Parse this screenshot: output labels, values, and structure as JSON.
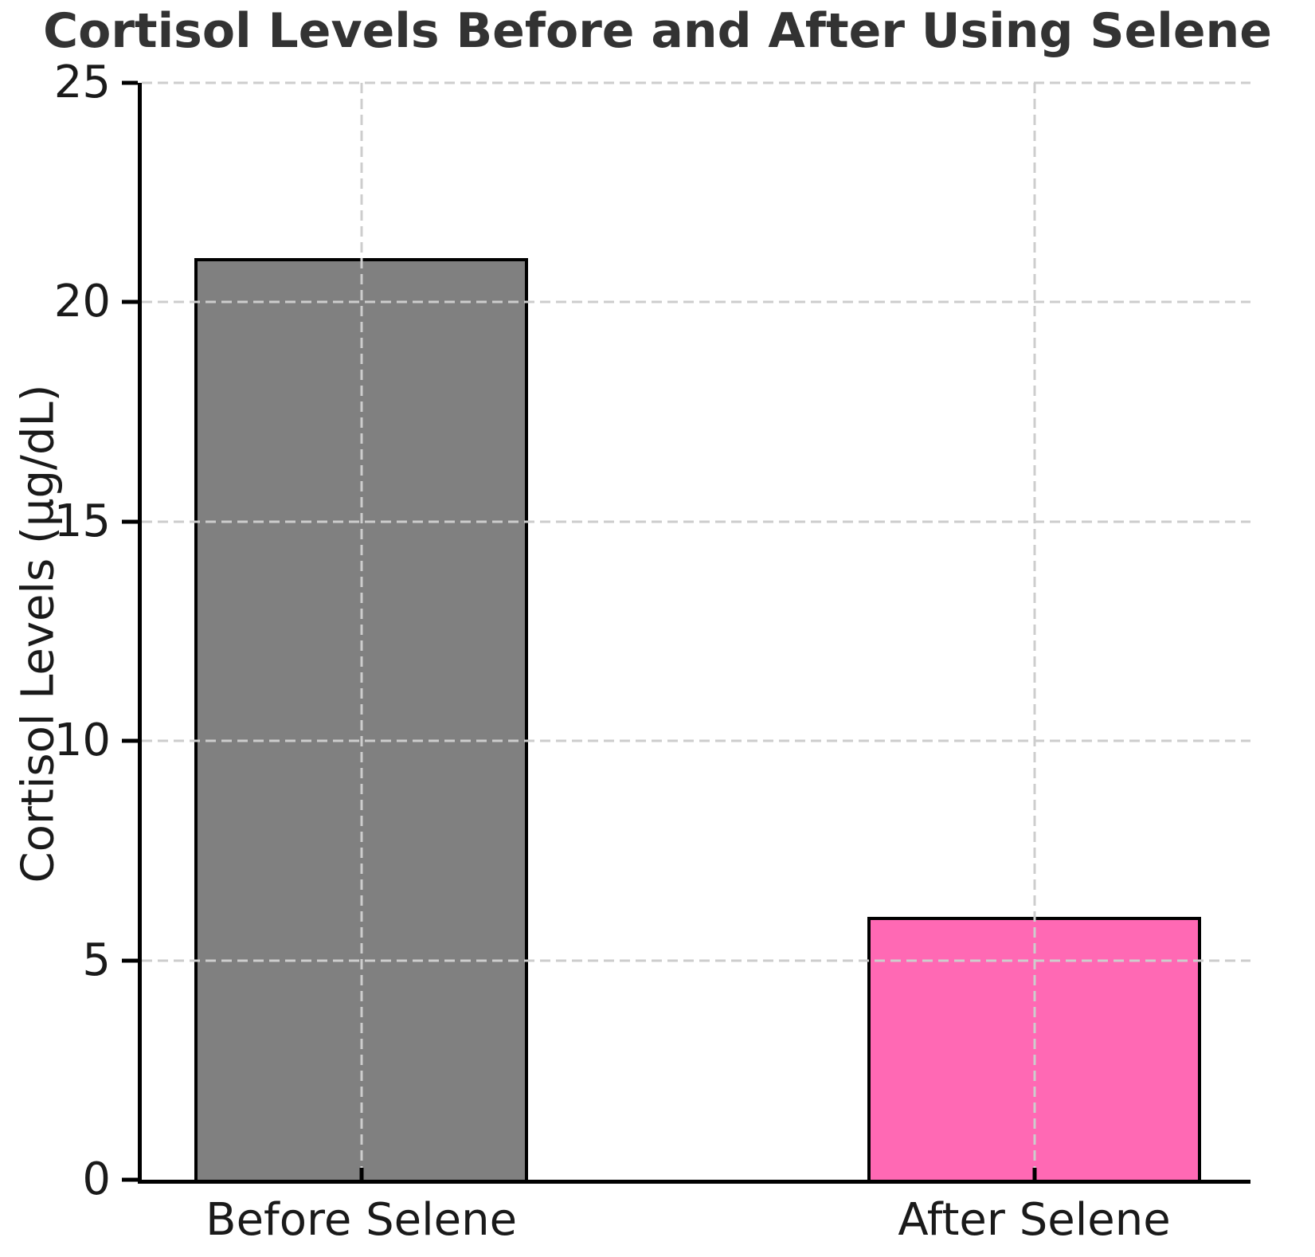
{
  "chart_data": {
    "type": "bar",
    "title": "Cortisol Levels Before and After Using Selene",
    "xlabel": "",
    "ylabel": "Cortisol Levels (µg/dL)",
    "categories": [
      "Before Selene",
      "After Selene"
    ],
    "values": [
      21,
      6
    ],
    "bar_colors": [
      "#808080",
      "#FF69B4"
    ],
    "bar_edge_color": "#000000",
    "ylim": [
      0,
      25
    ],
    "yticks": [
      0,
      5,
      10,
      15,
      20,
      25
    ],
    "grid": "dashed, horizontal and vertical, drawn above bars",
    "grid_color": "#cdcdcd",
    "legend": "none",
    "title_color": "#333333",
    "tick_label_color": "#1a1a1a",
    "bar_centers_frac": [
      0.198,
      0.805
    ],
    "bar_width_frac": 0.3006
  }
}
